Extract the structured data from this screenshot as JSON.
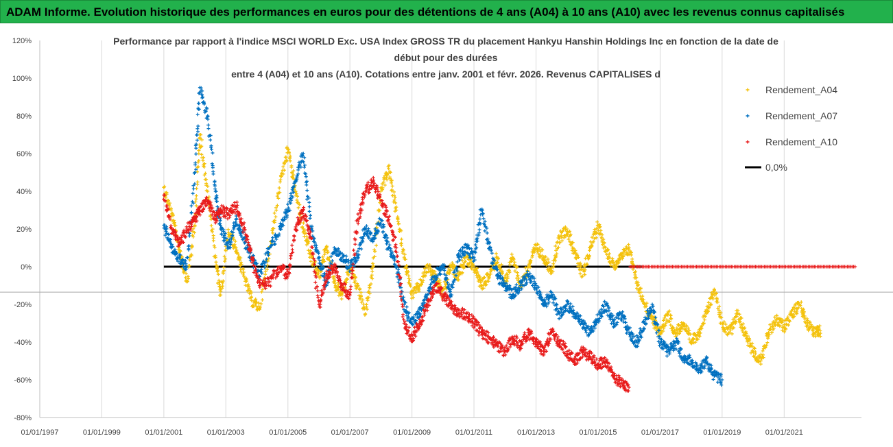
{
  "header": {
    "banner_text": "ADAM Informe. Evolution historique des performances en euros pour des détentions de 4 ans (A04) à 10 ans (A10) avec les revenus connus capitalisés"
  },
  "chart_data": {
    "type": "scatter",
    "title_lines": [
      "Performance par rapport à l'indice MSCI WORLD Exc. USA Index GROSS TR  du placement Hankyu Hanshin Holdings Inc en fonction de la date de",
      "début pour des durées",
      "entre 4 (A04) et 10 ans (A10). Cotations entre janv. 2001 et févr. 2026. Revenus CAPITALISES d"
    ],
    "xlabel": "",
    "ylabel": "",
    "x_ticks": [
      "01/01/1997",
      "01/01/1999",
      "01/01/2001",
      "01/01/2003",
      "01/01/2005",
      "01/01/2007",
      "01/01/2009",
      "01/01/2011",
      "01/01/2013",
      "01/01/2015",
      "01/01/2017",
      "01/01/2019",
      "01/01/2021"
    ],
    "xlim": [
      "1997-01-01",
      "2023-06-30"
    ],
    "y_ticks": [
      "120%",
      "100%",
      "80%",
      "60%",
      "40%",
      "20%",
      "0%",
      "-20%",
      "-40%",
      "-60%",
      "-80%"
    ],
    "ylim": [
      -80,
      120
    ],
    "y_unit": "%",
    "grid": "vertical",
    "legend_position": "right",
    "series": [
      {
        "name": "Rendement_A04",
        "color": "#f4c20d",
        "marker": "+",
        "points": [
          [
            "2001-01-01",
            42
          ],
          [
            "2001-04-01",
            28
          ],
          [
            "2001-07-01",
            10
          ],
          [
            "2001-10-01",
            -8
          ],
          [
            "2002-01-01",
            22
          ],
          [
            "2002-03-01",
            70
          ],
          [
            "2002-06-01",
            40
          ],
          [
            "2002-09-01",
            5
          ],
          [
            "2002-11-01",
            -15
          ],
          [
            "2003-02-01",
            18
          ],
          [
            "2003-05-01",
            10
          ],
          [
            "2003-08-01",
            -5
          ],
          [
            "2003-11-01",
            -18
          ],
          [
            "2004-02-01",
            -22
          ],
          [
            "2004-06-01",
            10
          ],
          [
            "2004-10-01",
            45
          ],
          [
            "2005-01-01",
            62
          ],
          [
            "2005-04-01",
            40
          ],
          [
            "2005-07-01",
            20
          ],
          [
            "2005-10-01",
            5
          ],
          [
            "2006-01-01",
            -5
          ],
          [
            "2006-04-01",
            10
          ],
          [
            "2006-07-01",
            -8
          ],
          [
            "2006-10-01",
            -15
          ],
          [
            "2007-01-01",
            0
          ],
          [
            "2007-04-01",
            -10
          ],
          [
            "2007-07-01",
            -25
          ],
          [
            "2007-10-01",
            0
          ],
          [
            "2008-01-01",
            40
          ],
          [
            "2008-04-01",
            52
          ],
          [
            "2008-07-01",
            30
          ],
          [
            "2008-10-01",
            5
          ],
          [
            "2009-01-01",
            -15
          ],
          [
            "2009-04-01",
            -10
          ],
          [
            "2009-07-01",
            0
          ],
          [
            "2009-10-01",
            -5
          ],
          [
            "2010-01-01",
            -15
          ],
          [
            "2010-04-01",
            0
          ],
          [
            "2010-07-01",
            -5
          ],
          [
            "2010-10-01",
            5
          ],
          [
            "2011-01-01",
            0
          ],
          [
            "2011-04-01",
            -10
          ],
          [
            "2011-07-01",
            -5
          ],
          [
            "2011-10-01",
            5
          ],
          [
            "2012-01-01",
            -8
          ],
          [
            "2012-04-01",
            5
          ],
          [
            "2012-07-01",
            -10
          ],
          [
            "2012-10-01",
            0
          ],
          [
            "2013-01-01",
            10
          ],
          [
            "2013-04-01",
            5
          ],
          [
            "2013-07-01",
            -2
          ],
          [
            "2013-10-01",
            15
          ],
          [
            "2014-01-01",
            20
          ],
          [
            "2014-04-01",
            8
          ],
          [
            "2014-07-01",
            -5
          ],
          [
            "2014-10-01",
            10
          ],
          [
            "2015-01-01",
            22
          ],
          [
            "2015-04-01",
            10
          ],
          [
            "2015-07-01",
            0
          ],
          [
            "2015-10-01",
            5
          ],
          [
            "2016-01-01",
            10
          ],
          [
            "2016-04-01",
            -8
          ],
          [
            "2016-07-01",
            -20
          ],
          [
            "2016-10-01",
            -28
          ],
          [
            "2017-01-01",
            -35
          ],
          [
            "2017-04-01",
            -25
          ],
          [
            "2017-07-01",
            -35
          ],
          [
            "2017-10-01",
            -30
          ],
          [
            "2018-01-01",
            -40
          ],
          [
            "2018-04-01",
            -35
          ],
          [
            "2018-07-01",
            -25
          ],
          [
            "2018-10-01",
            -12
          ],
          [
            "2019-01-01",
            -30
          ],
          [
            "2019-04-01",
            -35
          ],
          [
            "2019-07-01",
            -25
          ],
          [
            "2019-10-01",
            -35
          ],
          [
            "2020-01-01",
            -45
          ],
          [
            "2020-04-01",
            -50
          ],
          [
            "2020-07-01",
            -35
          ],
          [
            "2020-10-01",
            -28
          ],
          [
            "2021-01-01",
            -32
          ],
          [
            "2021-04-01",
            -25
          ],
          [
            "2021-07-01",
            -20
          ],
          [
            "2021-10-01",
            -30
          ],
          [
            "2022-01-01",
            -35
          ],
          [
            "2022-03-01",
            -34
          ]
        ]
      },
      {
        "name": "Rendement_A07",
        "color": "#0070c0",
        "marker": "+",
        "points": [
          [
            "2001-01-01",
            22
          ],
          [
            "2001-04-01",
            10
          ],
          [
            "2001-07-01",
            5
          ],
          [
            "2001-10-01",
            0
          ],
          [
            "2002-01-01",
            50
          ],
          [
            "2002-03-01",
            95
          ],
          [
            "2002-06-01",
            80
          ],
          [
            "2002-09-01",
            40
          ],
          [
            "2002-11-01",
            20
          ],
          [
            "2003-02-01",
            10
          ],
          [
            "2003-05-01",
            25
          ],
          [
            "2003-08-01",
            15
          ],
          [
            "2003-11-01",
            5
          ],
          [
            "2004-02-01",
            -5
          ],
          [
            "2004-06-01",
            10
          ],
          [
            "2004-10-01",
            20
          ],
          [
            "2005-01-01",
            30
          ],
          [
            "2005-04-01",
            45
          ],
          [
            "2005-07-01",
            60
          ],
          [
            "2005-10-01",
            20
          ],
          [
            "2006-01-01",
            5
          ],
          [
            "2006-04-01",
            -10
          ],
          [
            "2006-07-01",
            10
          ],
          [
            "2006-10-01",
            5
          ],
          [
            "2007-01-01",
            0
          ],
          [
            "2007-04-01",
            5
          ],
          [
            "2007-07-01",
            20
          ],
          [
            "2007-10-01",
            15
          ],
          [
            "2008-01-01",
            25
          ],
          [
            "2008-04-01",
            10
          ],
          [
            "2008-07-01",
            0
          ],
          [
            "2008-10-01",
            -20
          ],
          [
            "2009-01-01",
            -30
          ],
          [
            "2009-04-01",
            -25
          ],
          [
            "2009-07-01",
            -15
          ],
          [
            "2009-10-01",
            -5
          ],
          [
            "2010-01-01",
            0
          ],
          [
            "2010-04-01",
            -15
          ],
          [
            "2010-07-01",
            5
          ],
          [
            "2010-10-01",
            10
          ],
          [
            "2011-01-01",
            5
          ],
          [
            "2011-04-01",
            30
          ],
          [
            "2011-07-01",
            10
          ],
          [
            "2011-10-01",
            -5
          ],
          [
            "2012-01-01",
            -10
          ],
          [
            "2012-04-01",
            -15
          ],
          [
            "2012-07-01",
            -10
          ],
          [
            "2012-10-01",
            -5
          ],
          [
            "2013-01-01",
            -10
          ],
          [
            "2013-04-01",
            -20
          ],
          [
            "2013-07-01",
            -15
          ],
          [
            "2013-10-01",
            -25
          ],
          [
            "2014-01-01",
            -20
          ],
          [
            "2014-04-01",
            -25
          ],
          [
            "2014-07-01",
            -30
          ],
          [
            "2014-10-01",
            -35
          ],
          [
            "2015-01-01",
            -28
          ],
          [
            "2015-04-01",
            -20
          ],
          [
            "2015-07-01",
            -30
          ],
          [
            "2015-10-01",
            -25
          ],
          [
            "2016-01-01",
            -35
          ],
          [
            "2016-04-01",
            -40
          ],
          [
            "2016-07-01",
            -30
          ],
          [
            "2016-10-01",
            -20
          ],
          [
            "2017-01-01",
            -40
          ],
          [
            "2017-04-01",
            -45
          ],
          [
            "2017-07-01",
            -40
          ],
          [
            "2017-10-01",
            -48
          ],
          [
            "2018-01-01",
            -50
          ],
          [
            "2018-04-01",
            -55
          ],
          [
            "2018-07-01",
            -50
          ],
          [
            "2018-10-01",
            -58
          ],
          [
            "2019-01-01",
            -60
          ]
        ]
      },
      {
        "name": "Rendement_A10",
        "color": "#e81b1b",
        "marker": "+",
        "points": [
          [
            "2001-01-01",
            38
          ],
          [
            "2001-04-01",
            20
          ],
          [
            "2001-07-01",
            12
          ],
          [
            "2001-10-01",
            20
          ],
          [
            "2002-01-01",
            25
          ],
          [
            "2002-03-01",
            30
          ],
          [
            "2002-06-01",
            35
          ],
          [
            "2002-09-01",
            25
          ],
          [
            "2002-11-01",
            30
          ],
          [
            "2003-02-01",
            28
          ],
          [
            "2003-05-01",
            32
          ],
          [
            "2003-08-01",
            20
          ],
          [
            "2003-11-01",
            5
          ],
          [
            "2004-02-01",
            -10
          ],
          [
            "2004-06-01",
            -8
          ],
          [
            "2004-10-01",
            0
          ],
          [
            "2005-01-01",
            -5
          ],
          [
            "2005-04-01",
            20
          ],
          [
            "2005-07-01",
            30
          ],
          [
            "2005-10-01",
            15
          ],
          [
            "2006-01-01",
            -20
          ],
          [
            "2006-04-01",
            -5
          ],
          [
            "2006-07-01",
            0
          ],
          [
            "2006-10-01",
            -10
          ],
          [
            "2007-01-01",
            -15
          ],
          [
            "2007-04-01",
            25
          ],
          [
            "2007-07-01",
            40
          ],
          [
            "2007-10-01",
            45
          ],
          [
            "2008-01-01",
            35
          ],
          [
            "2008-04-01",
            25
          ],
          [
            "2008-07-01",
            10
          ],
          [
            "2008-10-01",
            -30
          ],
          [
            "2009-01-01",
            -38
          ],
          [
            "2009-04-01",
            -30
          ],
          [
            "2009-07-01",
            -20
          ],
          [
            "2009-10-01",
            -10
          ],
          [
            "2010-01-01",
            -15
          ],
          [
            "2010-04-01",
            -20
          ],
          [
            "2010-07-01",
            -25
          ],
          [
            "2010-10-01",
            -25
          ],
          [
            "2011-01-01",
            -30
          ],
          [
            "2011-04-01",
            -35
          ],
          [
            "2011-07-01",
            -38
          ],
          [
            "2011-10-01",
            -42
          ],
          [
            "2012-01-01",
            -45
          ],
          [
            "2012-04-01",
            -38
          ],
          [
            "2012-07-01",
            -42
          ],
          [
            "2012-10-01",
            -35
          ],
          [
            "2013-01-01",
            -40
          ],
          [
            "2013-04-01",
            -45
          ],
          [
            "2013-07-01",
            -35
          ],
          [
            "2013-10-01",
            -40
          ],
          [
            "2014-01-01",
            -45
          ],
          [
            "2014-04-01",
            -50
          ],
          [
            "2014-07-01",
            -45
          ],
          [
            "2014-10-01",
            -48
          ],
          [
            "2015-01-01",
            -52
          ],
          [
            "2015-04-01",
            -50
          ],
          [
            "2015-07-01",
            -58
          ],
          [
            "2015-10-01",
            -62
          ],
          [
            "2016-01-01",
            -64
          ]
        ]
      }
    ],
    "zero_line": {
      "name": "0,0%",
      "color": "#000000",
      "from": "2001-01-01",
      "to": "2016-06-01",
      "value": 0
    },
    "a10_zero_tail": {
      "from": "2016-01-15",
      "to": "2023-05-01",
      "value": 0
    }
  }
}
